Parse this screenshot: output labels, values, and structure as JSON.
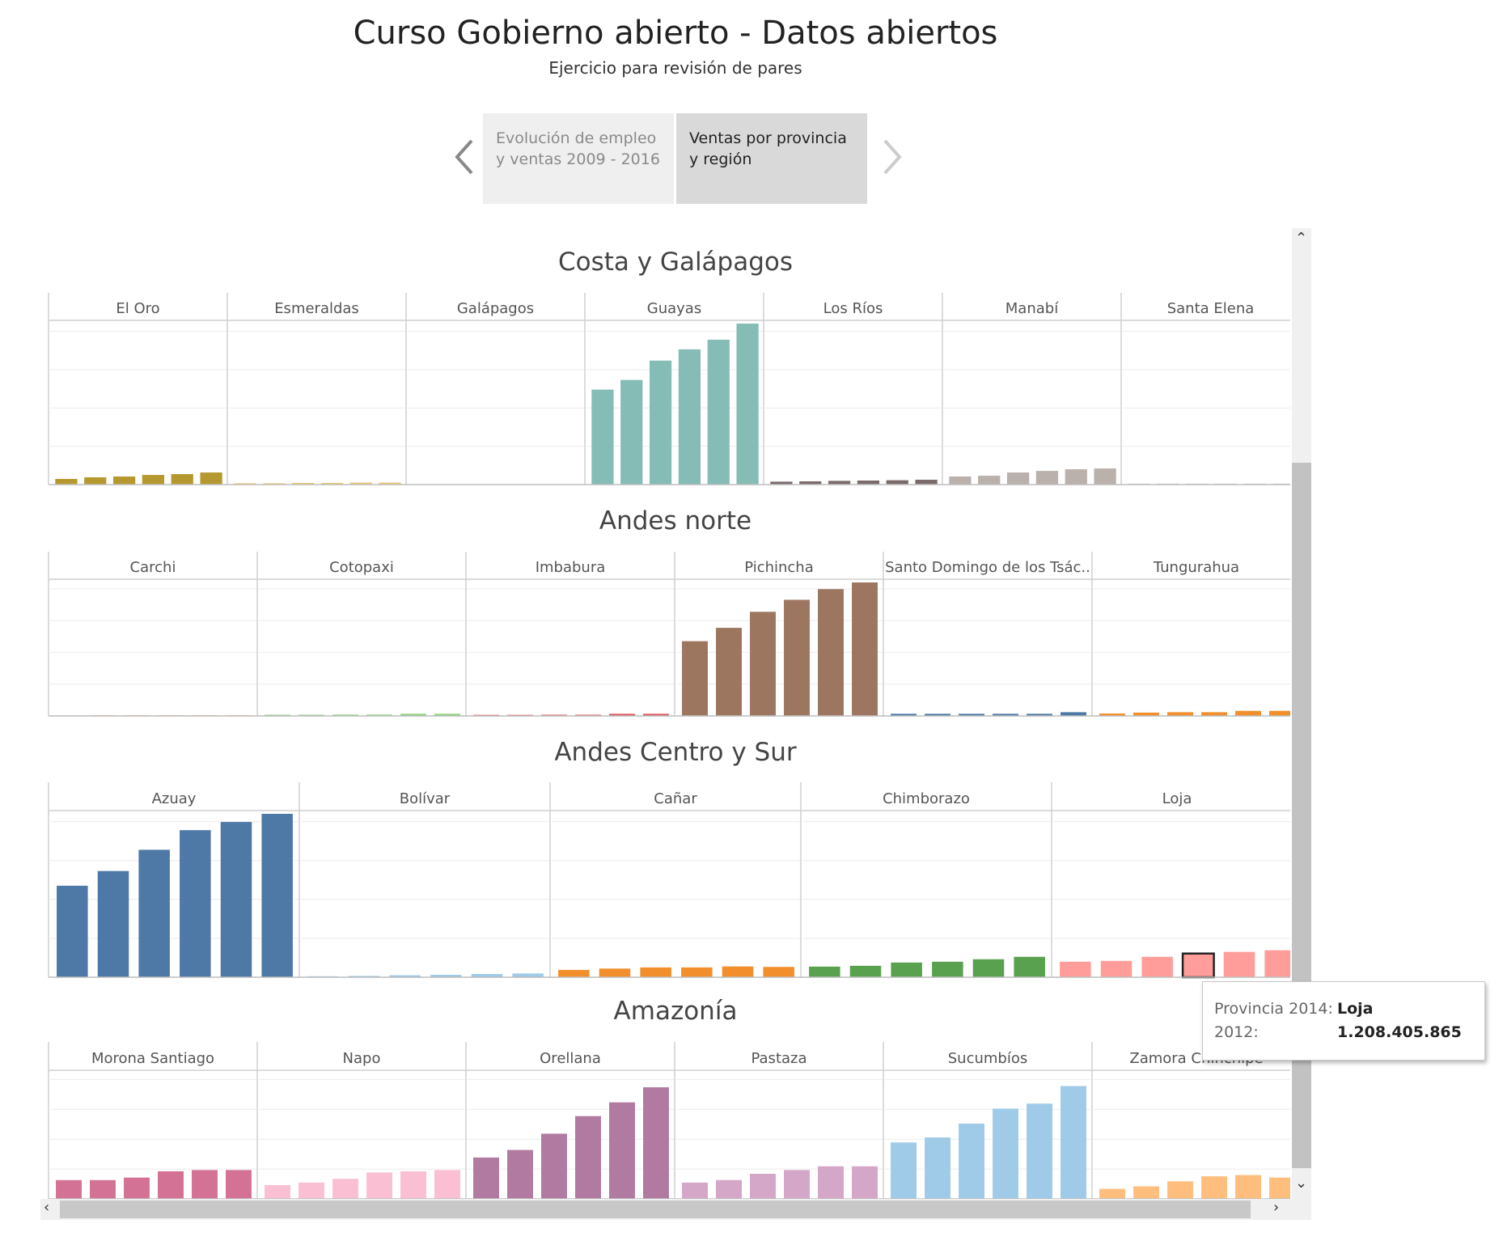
{
  "header": {
    "title": "Curso Gobierno abierto - Datos abiertos",
    "subtitle": "Ejercicio para revisión de pares"
  },
  "story": {
    "points": [
      {
        "label": "Evolución de empleo y ventas 2009 - 2016",
        "active": false
      },
      {
        "label": "Ventas por provincia y región",
        "active": true
      }
    ]
  },
  "tooltip": {
    "field1_label": "Provincia 2014:",
    "field1_value": "Loja",
    "field2_label": "2012:",
    "field2_value": "1.208.405.865"
  },
  "chart_data": [
    {
      "type": "bar",
      "title": "Costa y Galápagos",
      "bars_per_panel": 6,
      "y_range": [
        0,
        100
      ],
      "grid": true,
      "panels": [
        {
          "name": "El Oro",
          "color": "#b5982f",
          "values": [
            3.5,
            4.5,
            5,
            6,
            6.5,
            7.5
          ]
        },
        {
          "name": "Esmeraldas",
          "color": "#e8c56c",
          "values": [
            0.8,
            0.8,
            1,
            1,
            1.2,
            1.2
          ]
        },
        {
          "name": "Galápagos",
          "color": "#cfcfcf",
          "values": [
            0,
            0,
            0,
            0,
            0,
            0
          ]
        },
        {
          "name": "Guayas",
          "color": "#86bcb6",
          "values": [
            59,
            65,
            77,
            84,
            90,
            100
          ]
        },
        {
          "name": "Los Ríos",
          "color": "#7a6b6a",
          "values": [
            1.8,
            2,
            2.3,
            2.5,
            2.7,
            3
          ]
        },
        {
          "name": "Manabí",
          "color": "#bab0ac",
          "values": [
            5,
            5.5,
            7.5,
            8.5,
            9.5,
            10
          ]
        },
        {
          "name": "Santa Elena",
          "color": "#d6cfcb",
          "values": [
            0.6,
            0.6,
            0.6,
            0.6,
            0.6,
            0.6
          ]
        }
      ]
    },
    {
      "type": "bar",
      "title": "Andes norte",
      "bars_per_panel": 6,
      "y_range": [
        0,
        100
      ],
      "grid": true,
      "panels": [
        {
          "name": "Carchi",
          "color": "#f6c28b",
          "values": [
            0,
            0.6,
            0.6,
            0.6,
            0.6,
            0.6
          ]
        },
        {
          "name": "Cotopaxi",
          "color": "#8cd17d",
          "values": [
            0.9,
            0.9,
            1,
            1,
            1.6,
            1.6
          ]
        },
        {
          "name": "Imbabura",
          "color": "#e15759",
          "values": [
            0.8,
            0.8,
            0.9,
            0.9,
            1.6,
            1.6
          ]
        },
        {
          "name": "Pichincha",
          "color": "#9d7660",
          "values": [
            56,
            66,
            78,
            87,
            95,
            100
          ]
        },
        {
          "name": "Santo Domingo de los Tsác..",
          "color": "#4e79a7",
          "values": [
            1.6,
            1.6,
            1.6,
            1.6,
            1.6,
            2.8
          ]
        },
        {
          "name": "Tungurahua",
          "color": "#f28e2b",
          "values": [
            1.8,
            2.5,
            2.8,
            2.8,
            3.8,
            3.8
          ]
        }
      ]
    },
    {
      "type": "bar",
      "title": "Andes Centro y Sur",
      "bars_per_panel": 6,
      "y_range": [
        0,
        100
      ],
      "grid": true,
      "panels": [
        {
          "name": "Azuay",
          "color": "#4e79a7",
          "values": [
            56,
            65,
            78,
            90,
            95,
            100
          ]
        },
        {
          "name": "Bolívar",
          "color": "#a0cbe8",
          "values": [
            0.6,
            0.8,
            1.2,
            1.5,
            2,
            2.3
          ]
        },
        {
          "name": "Cañar",
          "color": "#f28e2b",
          "values": [
            4.5,
            5.3,
            6,
            6,
            6.6,
            6.3
          ]
        },
        {
          "name": "Chimborazo",
          "color": "#59a14f",
          "values": [
            6.5,
            7,
            9,
            9.5,
            11,
            12.5
          ]
        },
        {
          "name": "Loja",
          "color": "#ff9d9a",
          "values": [
            9.5,
            10,
            12.5,
            14.5,
            15.5,
            16.5
          ],
          "highlight_index": 3
        }
      ]
    },
    {
      "type": "bar",
      "title": "Amazonía",
      "bars_per_panel": 6,
      "y_range": [
        0,
        100
      ],
      "grid": true,
      "panels": [
        {
          "name": "Morona Santiago",
          "color": "#d37295",
          "values": [
            15,
            15,
            17,
            22,
            23,
            23
          ]
        },
        {
          "name": "Napo",
          "color": "#fabfd2",
          "values": [
            11,
            13,
            16,
            21,
            22,
            23
          ]
        },
        {
          "name": "Orellana",
          "color": "#b07aa1",
          "values": [
            33,
            39,
            52,
            66,
            77,
            89
          ]
        },
        {
          "name": "Pastaza",
          "color": "#d4a6c8",
          "values": [
            13,
            15,
            20,
            23,
            26,
            26
          ]
        },
        {
          "name": "Sucumbíos",
          "color": "#a0cbe8",
          "values": [
            45,
            49,
            60,
            72,
            76,
            90
          ]
        },
        {
          "name": "Zamora Chinchipe",
          "color": "#ffbe7d",
          "values": [
            8,
            10,
            14,
            18,
            19,
            17
          ]
        }
      ]
    }
  ]
}
